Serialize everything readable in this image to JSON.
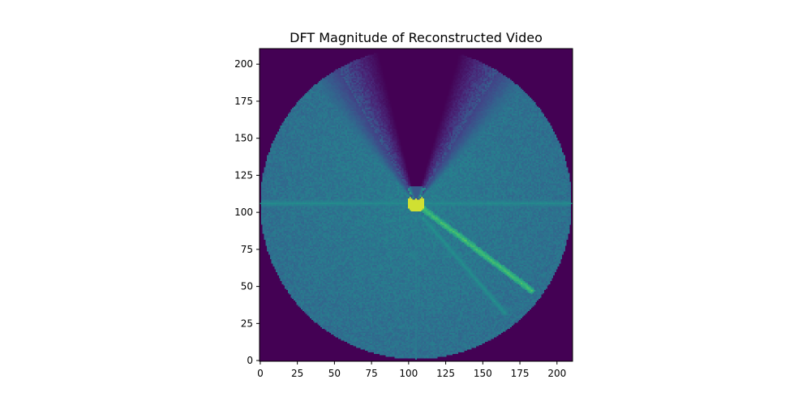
{
  "chart_data": {
    "type": "heatmap",
    "title": "DFT Magnitude of Reconstructed Video",
    "xlabel": "",
    "ylabel": "",
    "image_size": [
      211,
      211
    ],
    "xlim": [
      -0.5,
      210.5
    ],
    "ylim": [
      210.5,
      -0.5
    ],
    "colormap": "viridis",
    "xticks": [
      0,
      25,
      50,
      75,
      100,
      125,
      150,
      175,
      200
    ],
    "yticks": [
      0,
      25,
      50,
      75,
      100,
      125,
      150,
      175,
      200
    ],
    "xtick_labels": [
      "0",
      "25",
      "50",
      "75",
      "100",
      "125",
      "150",
      "175",
      "200"
    ],
    "ytick_labels": [
      "0",
      "25",
      "50",
      "75",
      "100",
      "125",
      "150",
      "175",
      "200"
    ],
    "description_values": {
      "center": [
        105,
        104
      ],
      "disk_radius": 105,
      "background_value": 0.0,
      "wedge_cut_angles_deg": [
        -120,
        -58
      ],
      "features": [
        {
          "kind": "bright-streak",
          "from": [
            105,
            104
          ],
          "to": [
            183,
            163
          ],
          "value": 0.78
        },
        {
          "kind": "bright-streak",
          "from": [
            110,
            114
          ],
          "to": [
            165,
            178
          ],
          "value": 0.62
        },
        {
          "kind": "bright-band",
          "from": [
            0,
            104
          ],
          "to": [
            210,
            104
          ],
          "value": 0.6
        },
        {
          "kind": "bright-band",
          "from": [
            105,
            60
          ],
          "to": [
            105,
            210
          ],
          "value": 0.5
        }
      ]
    },
    "grid": false,
    "legend": "none"
  }
}
